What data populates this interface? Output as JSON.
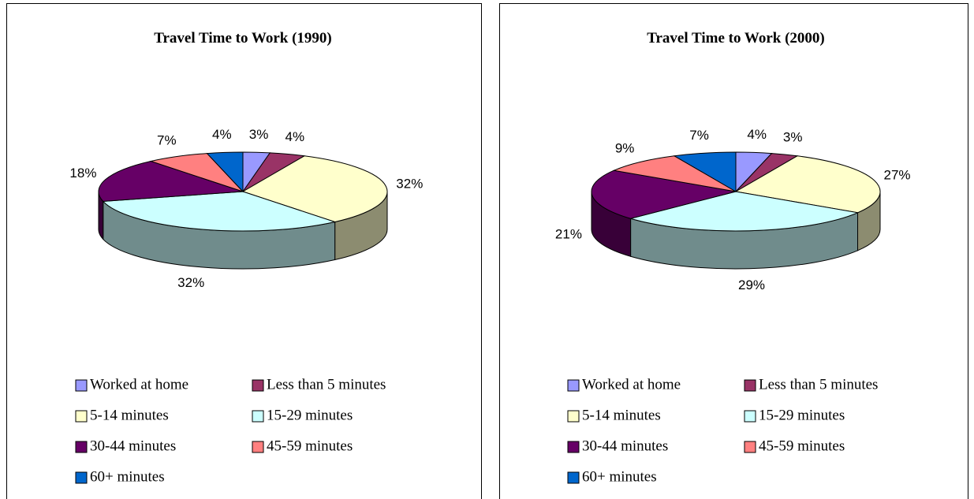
{
  "chart_data": [
    {
      "type": "pie3d",
      "title": "Travel Time to Work (1990)",
      "categories": [
        "Worked at home",
        "Less than 5 minutes",
        "5-14 minutes",
        "15-29 minutes",
        "30-44 minutes",
        "45-59 minutes",
        "60+ minutes"
      ],
      "values": [
        3,
        4,
        32,
        32,
        18,
        7,
        4
      ],
      "value_labels": [
        "3%",
        "4%",
        "32%",
        "32%",
        "18%",
        "7%",
        "4%"
      ],
      "colors": [
        "#9999ff",
        "#993366",
        "#ffffcc",
        "#ccffff",
        "#660066",
        "#ff8080",
        "#0066cc"
      ]
    },
    {
      "type": "pie3d",
      "title": "Travel Time to Work (2000)",
      "categories": [
        "Worked at home",
        "Less than 5 minutes",
        "5-14 minutes",
        "15-29 minutes",
        "30-44 minutes",
        "45-59 minutes",
        "60+ minutes"
      ],
      "values": [
        4,
        3,
        27,
        29,
        21,
        9,
        7
      ],
      "value_labels": [
        "4%",
        "3%",
        "27%",
        "29%",
        "21%",
        "9%",
        "7%"
      ],
      "colors": [
        "#9999ff",
        "#993366",
        "#ffffcc",
        "#ccffff",
        "#660066",
        "#ff8080",
        "#0066cc"
      ]
    }
  ]
}
